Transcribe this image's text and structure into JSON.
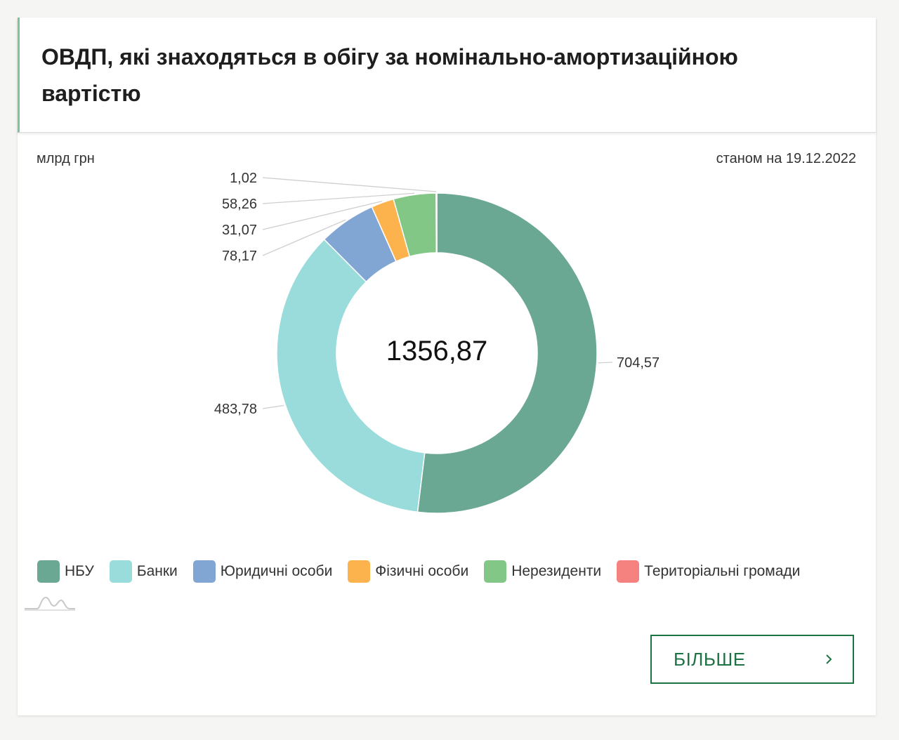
{
  "header": {
    "title": "ОВДП, які знаходяться в обігу за номінально-амортизаційною вартістю"
  },
  "unit_label": "млрд грн",
  "date_label": "станом на 19.12.2022",
  "chart_data": {
    "type": "pie",
    "variant": "donut",
    "unit": "млрд грн",
    "center_label": "1356,87",
    "total": 1356.87,
    "legend_position": "bottom",
    "series": [
      {
        "name": "НБУ",
        "value": 704.57,
        "label": "704,57",
        "color": "#6aa893"
      },
      {
        "name": "Банки",
        "value": 483.78,
        "label": "483,78",
        "color": "#99dcdb"
      },
      {
        "name": "Юридичні особи",
        "value": 78.17,
        "label": "78,17",
        "color": "#81a6d4"
      },
      {
        "name": "Фізичні особи",
        "value": 31.07,
        "label": "31,07",
        "color": "#fdb34d"
      },
      {
        "name": "Нерезиденти",
        "value": 58.26,
        "label": "58,26",
        "color": "#82c785"
      },
      {
        "name": "Територіальні громади",
        "value": 1.02,
        "label": "1,02",
        "color": "#f5827f"
      }
    ]
  },
  "legend": [
    {
      "label": "НБУ",
      "color": "#6aa893"
    },
    {
      "label": "Банки",
      "color": "#99dcdb"
    },
    {
      "label": "Юридичні особи",
      "color": "#81a6d4"
    },
    {
      "label": "Фізичні особи",
      "color": "#fdb34d"
    },
    {
      "label": "Нерезиденти",
      "color": "#82c785"
    },
    {
      "label": "Територіальні громади",
      "color": "#f5827f"
    }
  ],
  "more_button": {
    "label": "БІЛЬШЕ",
    "icon": "chevron-right-icon"
  }
}
